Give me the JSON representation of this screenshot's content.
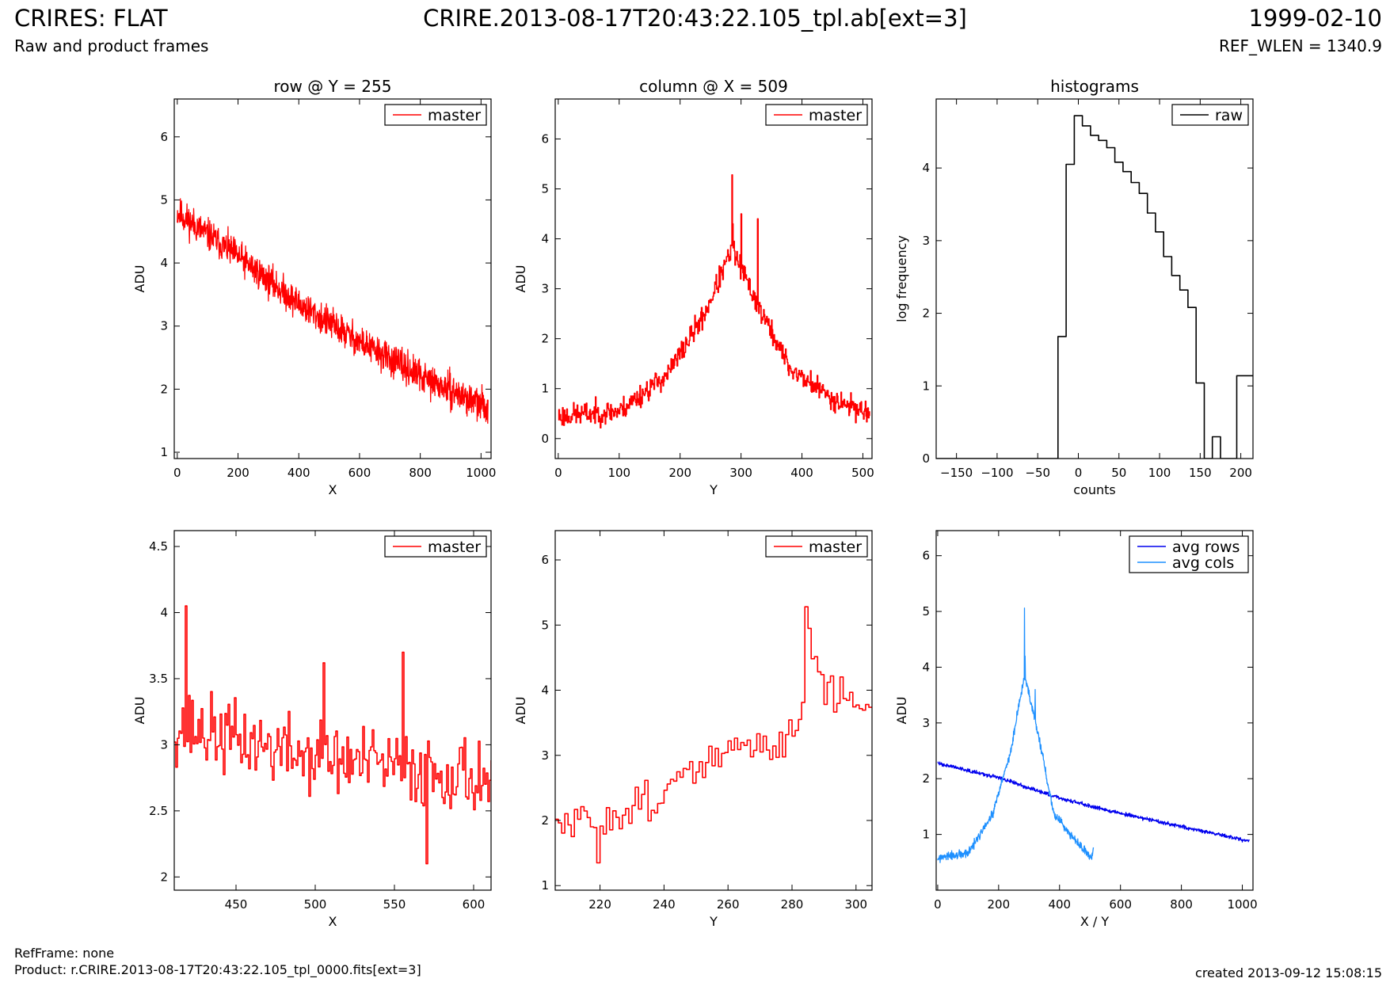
{
  "header": {
    "title": "CRIRES: FLAT",
    "subtitle": "Raw and product frames",
    "file": "CRIRE.2013-08-17T20:43:22.105_tpl.ab[ext=3]",
    "date": "1999-02-10",
    "ref_wlen": "REF_WLEN = 1340.9"
  },
  "footer": {
    "refframe": "RefFrame: none",
    "product": "Product: r.CRIRE.2013-08-17T20:43:22.105_tpl_0000.fits[ext=3]",
    "created": "created 2013-09-12 15:08:15"
  },
  "colors": {
    "master": "#ff0000",
    "raw": "#000000",
    "avg_rows": "#0000ee",
    "avg_cols": "#1e90ff"
  },
  "chart_data": [
    {
      "id": "row-plot",
      "type": "line",
      "title": "row @ Y = 255",
      "xlabel": "X",
      "ylabel": "ADU",
      "xlim": [
        -10,
        1033
      ],
      "ylim": [
        0.9,
        6.6
      ],
      "xticks": [
        0,
        200,
        400,
        600,
        800,
        1000
      ],
      "yticks": [
        1,
        2,
        3,
        4,
        5,
        6
      ],
      "legend": "top-right",
      "series": [
        {
          "name": "master",
          "color": "#ff0000",
          "step": false,
          "noise": {
            "x_start": 0,
            "x_end": 1023,
            "n": 1024,
            "amp": 0.38,
            "seed": 11,
            "trend": [
              [
                0,
                4.8
              ],
              [
                200,
                4.1
              ],
              [
                400,
                3.35
              ],
              [
                600,
                2.75
              ],
              [
                800,
                2.2
              ],
              [
                1023,
                1.7
              ]
            ]
          }
        }
      ]
    },
    {
      "id": "col-plot",
      "type": "line",
      "title": "column @ X = 509",
      "xlabel": "Y",
      "ylabel": "ADU",
      "xlim": [
        -5,
        515
      ],
      "ylim": [
        -0.4,
        6.8
      ],
      "xticks": [
        0,
        100,
        200,
        300,
        400,
        500
      ],
      "yticks": [
        0,
        1,
        2,
        3,
        4,
        5,
        6
      ],
      "legend": "top-right",
      "series": [
        {
          "name": "master",
          "color": "#ff0000",
          "step": true,
          "noise": {
            "x_start": 0,
            "x_end": 511,
            "n": 512,
            "amp": 0.35,
            "seed": 23,
            "trend": [
              [
                0,
                0.45
              ],
              [
                100,
                0.55
              ],
              [
                180,
                1.3
              ],
              [
                240,
                2.5
              ],
              [
                285,
                3.8
              ],
              [
                330,
                2.6
              ],
              [
                380,
                1.4
              ],
              [
                450,
                0.8
              ],
              [
                511,
                0.5
              ]
            ]
          },
          "spikes": [
            [
              285,
              5.28
            ],
            [
              286,
              4.3
            ],
            [
              300,
              4.5
            ],
            [
              327,
              4.4
            ]
          ]
        }
      ]
    },
    {
      "id": "hist-plot",
      "type": "line",
      "title": "histograms",
      "xlabel": "counts",
      "ylabel": "log frequency",
      "xlim": [
        -175,
        215
      ],
      "ylim": [
        0,
        4.95
      ],
      "xticks": [
        -150,
        -100,
        -50,
        0,
        50,
        100,
        150,
        200
      ],
      "yticks": [
        0,
        1,
        2,
        3,
        4
      ],
      "legend": "top-right",
      "series": [
        {
          "name": "raw",
          "color": "#000000",
          "step": true,
          "x": [
            -175,
            -25,
            -25,
            -15,
            -15,
            -5,
            -5,
            5,
            5,
            15,
            15,
            25,
            25,
            35,
            35,
            45,
            45,
            55,
            55,
            65,
            65,
            75,
            75,
            85,
            85,
            95,
            95,
            105,
            105,
            115,
            115,
            125,
            125,
            135,
            135,
            145,
            145,
            155,
            155,
            165,
            165,
            175,
            175,
            195,
            195,
            205,
            205,
            215
          ],
          "y": [
            0,
            0,
            1.68,
            1.68,
            4.05,
            4.05,
            4.72,
            4.72,
            4.58,
            4.58,
            4.45,
            4.45,
            4.38,
            4.38,
            4.28,
            4.28,
            4.08,
            4.08,
            3.95,
            3.95,
            3.8,
            3.8,
            3.65,
            3.65,
            3.38,
            3.38,
            3.12,
            3.12,
            2.78,
            2.78,
            2.52,
            2.52,
            2.32,
            2.32,
            2.08,
            2.08,
            1.04,
            1.04,
            0,
            0,
            0.3,
            0.3,
            0,
            0,
            1.14,
            1.14,
            1.14,
            1.14
          ]
        }
      ]
    },
    {
      "id": "row-zoom-plot",
      "type": "line",
      "title": "",
      "xlabel": "X",
      "ylabel": "ADU",
      "xlim": [
        411,
        611
      ],
      "ylim": [
        1.9,
        4.62
      ],
      "xticks": [
        450,
        500,
        550,
        600
      ],
      "yticks": [
        2.0,
        2.5,
        3.0,
        3.5,
        4.0,
        4.5
      ],
      "legend": "top-right",
      "series": [
        {
          "name": "master",
          "color": "#ff0000",
          "step": true,
          "noise": {
            "x_start": 411,
            "x_end": 611,
            "n": 201,
            "amp": 0.42,
            "seed": 37,
            "trend": [
              [
                411,
                3.15
              ],
              [
                500,
                2.9
              ],
              [
                611,
                2.75
              ]
            ]
          },
          "spikes": [
            [
              418,
              4.05
            ],
            [
              555,
              3.7
            ],
            [
              570,
              2.1
            ],
            [
              505,
              3.62
            ]
          ]
        }
      ]
    },
    {
      "id": "col-zoom-plot",
      "type": "line",
      "title": "",
      "xlabel": "Y",
      "ylabel": "ADU",
      "xlim": [
        206,
        305
      ],
      "ylim": [
        0.93,
        6.45
      ],
      "xticks": [
        220,
        240,
        260,
        280,
        300
      ],
      "yticks": [
        1,
        2,
        3,
        4,
        5,
        6
      ],
      "legend": "top-right",
      "series": [
        {
          "name": "master",
          "color": "#ff0000",
          "step": true,
          "noise": {
            "x_start": 206,
            "x_end": 305,
            "n": 100,
            "amp": 0.45,
            "seed": 51,
            "trend": [
              [
                206,
                1.9
              ],
              [
                220,
                2.0
              ],
              [
                240,
                2.45
              ],
              [
                260,
                3.1
              ],
              [
                275,
                3.1
              ],
              [
                282,
                3.6
              ],
              [
                285,
                4.8
              ],
              [
                290,
                4.0
              ],
              [
                305,
                3.7
              ]
            ]
          },
          "spikes": [
            [
              284,
              5.28
            ],
            [
              285,
              4.95
            ],
            [
              219,
              1.35
            ]
          ]
        }
      ]
    },
    {
      "id": "avg-plot",
      "type": "line",
      "title": "",
      "xlabel": "X / Y",
      "ylabel": "ADU",
      "xlim": [
        -5,
        1035
      ],
      "ylim": [
        0,
        6.45
      ],
      "xticks": [
        0,
        200,
        400,
        600,
        800,
        1000
      ],
      "yticks": [
        1,
        2,
        3,
        4,
        5,
        6
      ],
      "legend": "top-right",
      "series": [
        {
          "name": "avg rows",
          "color": "#0000ee",
          "step": false,
          "noise": {
            "x_start": 0,
            "x_end": 1023,
            "n": 1024,
            "amp": 0.05,
            "seed": 63,
            "trend": [
              [
                0,
                2.28
              ],
              [
                200,
                2.02
              ],
              [
                400,
                1.65
              ],
              [
                600,
                1.38
              ],
              [
                800,
                1.14
              ],
              [
                1023,
                0.88
              ]
            ]
          }
        },
        {
          "name": "avg cols",
          "color": "#1e90ff",
          "step": false,
          "noise": {
            "x_start": 0,
            "x_end": 511,
            "n": 512,
            "amp": 0.12,
            "seed": 77,
            "trend": [
              [
                0,
                0.57
              ],
              [
                100,
                0.66
              ],
              [
                180,
                1.35
              ],
              [
                240,
                2.5
              ],
              [
                285,
                3.85
              ],
              [
                330,
                2.8
              ],
              [
                380,
                1.4
              ],
              [
                450,
                0.9
              ],
              [
                505,
                0.56
              ],
              [
                511,
                0.75
              ]
            ]
          },
          "spikes": [
            [
              285,
              5.06
            ],
            [
              287,
              4.2
            ],
            [
              320,
              3.6
            ]
          ]
        }
      ]
    }
  ]
}
